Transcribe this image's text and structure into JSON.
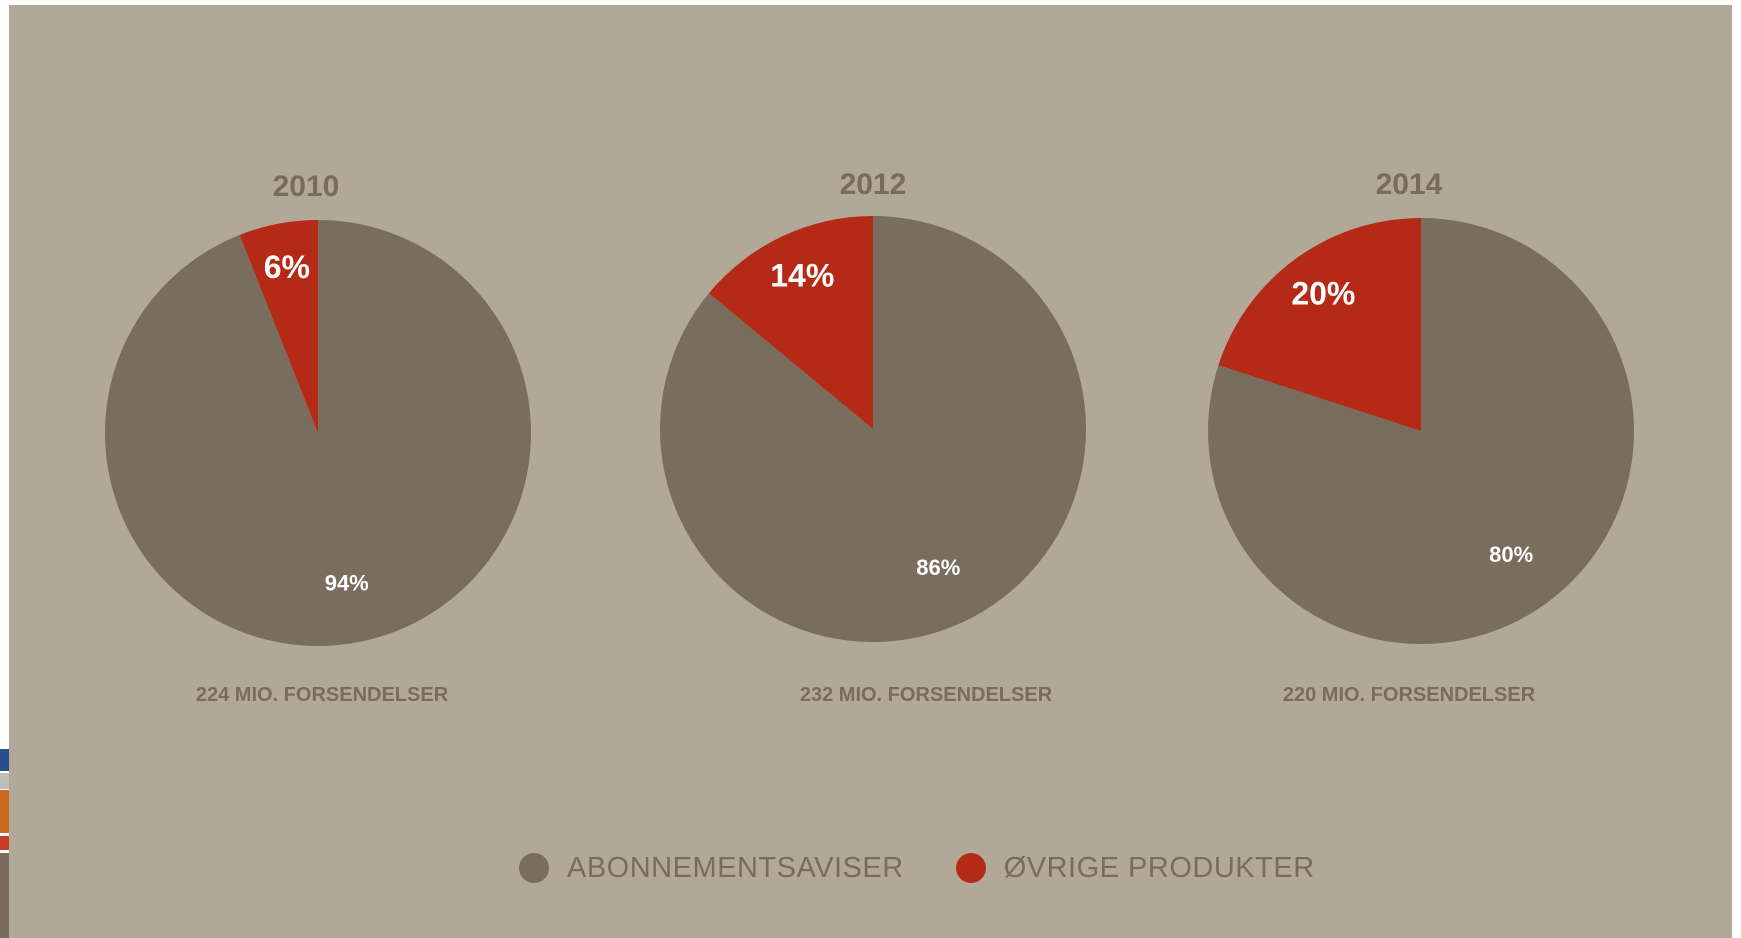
{
  "colors": {
    "background": "#b2a898",
    "abonnement": "#796d5d",
    "ovrige": "#b52a17",
    "text": "#7a6c5c",
    "slice_label": "#ffffff",
    "side_strips": [
      "#2a4f8f",
      "#c1bdb8",
      "#c86b1e",
      "#c93a24",
      "#7a6c5c"
    ]
  },
  "chart_data": [
    {
      "type": "pie",
      "title": "2010",
      "caption": "224 MIO. FORSENDELSER",
      "slices": [
        {
          "category": "ØVRIGE PRODUKTER",
          "value": 6,
          "label": "6%"
        },
        {
          "category": "ABONNEMENTSAVISER",
          "value": 94,
          "label": "94%"
        }
      ]
    },
    {
      "type": "pie",
      "title": "2012",
      "caption": "232 MIO. FORSENDELSER",
      "slices": [
        {
          "category": "ØVRIGE PRODUKTER",
          "value": 14,
          "label": "14%"
        },
        {
          "category": "ABONNEMENTSAVISER",
          "value": 86,
          "label": "86%"
        }
      ]
    },
    {
      "type": "pie",
      "title": "2014",
      "caption": "220 MIO. FORSENDELSER",
      "slices": [
        {
          "category": "ØVRIGE PRODUKTER",
          "value": 20,
          "label": "20%"
        },
        {
          "category": "ABONNEMENTSAVISER",
          "value": 80,
          "label": "80%"
        }
      ]
    }
  ],
  "legend": {
    "items": [
      {
        "label": "ABONNEMENTSAVISER",
        "color_key": "abonnement"
      },
      {
        "label": "ØVRIGE PRODUKTER",
        "color_key": "ovrige"
      }
    ]
  }
}
